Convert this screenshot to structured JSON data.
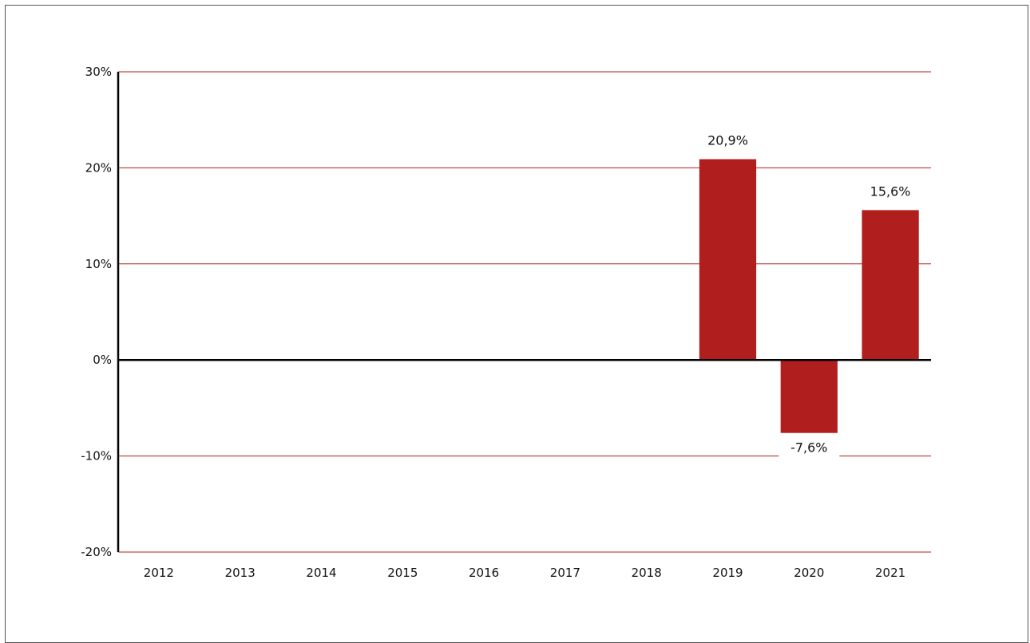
{
  "chart_data": {
    "type": "bar",
    "categories": [
      "2012",
      "2013",
      "2014",
      "2015",
      "2016",
      "2017",
      "2018",
      "2019",
      "2020",
      "2021"
    ],
    "values": [
      null,
      null,
      null,
      null,
      null,
      null,
      null,
      20.9,
      -7.6,
      15.6
    ],
    "data_labels": [
      "",
      "",
      "",
      "",
      "",
      "",
      "",
      "20,9%",
      "-7,6%",
      "15,6%"
    ],
    "ylim": [
      -20,
      30
    ],
    "yticks": [
      30,
      20,
      10,
      0,
      -10,
      -20
    ],
    "ytick_labels": [
      "30%",
      "20%",
      "10%",
      "0%",
      "-10%",
      "-20%"
    ],
    "grid": true,
    "legend": "none",
    "title": "",
    "xlabel": "",
    "ylabel": "",
    "colors": {
      "bar": "#b01e1e",
      "grid": "#b01e1e",
      "axis": "#000000",
      "text": "#111111"
    }
  }
}
